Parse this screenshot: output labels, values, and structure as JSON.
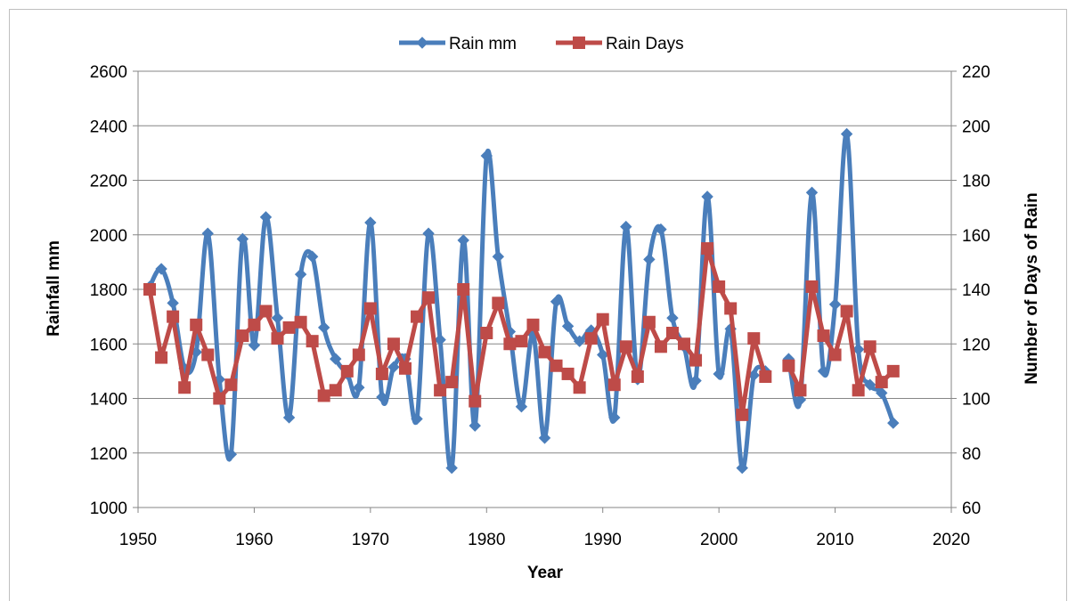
{
  "chart_data": {
    "type": "line",
    "xlabel": "Year",
    "ylabel_left": "Rainfall mm",
    "ylabel_right": "Number of Days of Rain",
    "xlim": [
      1950,
      2020
    ],
    "xticks": [
      1950,
      1960,
      1970,
      1980,
      1990,
      2000,
      2010,
      2020
    ],
    "ylim_left": [
      1000,
      2600
    ],
    "yticks_left": [
      1000,
      1200,
      1400,
      1600,
      1800,
      2000,
      2200,
      2400,
      2600
    ],
    "ylim_right": [
      60,
      220
    ],
    "yticks_right": [
      60,
      80,
      100,
      120,
      140,
      160,
      180,
      200,
      220
    ],
    "legend_position": "top",
    "grid": "horizontal",
    "series": [
      {
        "name": "Rain mm",
        "axis": "left",
        "color": "#4a7ebb",
        "marker": "diamond",
        "smooth": true,
        "points": [
          [
            1951,
            1810
          ],
          [
            1952,
            1875
          ],
          [
            1953,
            1750
          ],
          [
            1954,
            1510
          ],
          [
            1955,
            1570
          ],
          [
            1956,
            2005
          ],
          [
            1957,
            1470
          ],
          [
            1958,
            1195
          ],
          [
            1959,
            1985
          ],
          [
            1960,
            1595
          ],
          [
            1961,
            2065
          ],
          [
            1962,
            1695
          ],
          [
            1963,
            1330
          ],
          [
            1964,
            1855
          ],
          [
            1965,
            1920
          ],
          [
            1966,
            1660
          ],
          [
            1967,
            1545
          ],
          [
            1968,
            1490
          ],
          [
            1969,
            1440
          ],
          [
            1970,
            2045
          ],
          [
            1971,
            1405
          ],
          [
            1972,
            1515
          ],
          [
            1973,
            1545
          ],
          [
            1974,
            1325
          ],
          [
            1975,
            2005
          ],
          [
            1976,
            1615
          ],
          [
            1977,
            1145
          ],
          [
            1978,
            1980
          ],
          [
            1979,
            1300
          ],
          [
            1980,
            2290
          ],
          [
            1981,
            1920
          ],
          [
            1982,
            1645
          ],
          [
            1983,
            1370
          ],
          [
            1984,
            1635
          ],
          [
            1985,
            1255
          ],
          [
            1986,
            1755
          ],
          [
            1987,
            1665
          ],
          [
            1988,
            1610
          ],
          [
            1989,
            1650
          ],
          [
            1990,
            1560
          ],
          [
            1991,
            1330
          ],
          [
            1992,
            2030
          ],
          [
            1993,
            1470
          ],
          [
            1994,
            1910
          ],
          [
            1995,
            2020
          ],
          [
            1996,
            1695
          ],
          [
            1997,
            1590
          ],
          [
            1998,
            1465
          ],
          [
            1999,
            2140
          ],
          [
            2000,
            1490
          ],
          [
            2001,
            1655
          ],
          [
            2002,
            1145
          ],
          [
            2003,
            1485
          ],
          [
            2004,
            1500
          ],
          [
            2006,
            1545
          ],
          [
            2007,
            1395
          ],
          [
            2008,
            2155
          ],
          [
            2009,
            1500
          ],
          [
            2010,
            1745
          ],
          [
            2011,
            2370
          ],
          [
            2012,
            1580
          ],
          [
            2013,
            1450
          ],
          [
            2014,
            1420
          ],
          [
            2015,
            1310
          ]
        ]
      },
      {
        "name": "Rain Days",
        "axis": "right",
        "color": "#be4b48",
        "marker": "square",
        "smooth": false,
        "points": [
          [
            1951,
            140
          ],
          [
            1952,
            115
          ],
          [
            1953,
            130
          ],
          [
            1954,
            104
          ],
          [
            1955,
            127
          ],
          [
            1956,
            116
          ],
          [
            1957,
            100
          ],
          [
            1958,
            105
          ],
          [
            1959,
            123
          ],
          [
            1960,
            127
          ],
          [
            1961,
            132
          ],
          [
            1962,
            122
          ],
          [
            1963,
            126
          ],
          [
            1964,
            128
          ],
          [
            1965,
            121
          ],
          [
            1966,
            101
          ],
          [
            1967,
            103
          ],
          [
            1968,
            110
          ],
          [
            1969,
            116
          ],
          [
            1970,
            133
          ],
          [
            1971,
            109
          ],
          [
            1972,
            120
          ],
          [
            1973,
            111
          ],
          [
            1974,
            130
          ],
          [
            1975,
            137
          ],
          [
            1976,
            103
          ],
          [
            1977,
            106
          ],
          [
            1978,
            140
          ],
          [
            1979,
            99
          ],
          [
            1980,
            124
          ],
          [
            1981,
            135
          ],
          [
            1982,
            120
          ],
          [
            1983,
            121
          ],
          [
            1984,
            127
          ],
          [
            1985,
            117
          ],
          [
            1986,
            112
          ],
          [
            1987,
            109
          ],
          [
            1988,
            104
          ],
          [
            1989,
            122
          ],
          [
            1990,
            129
          ],
          [
            1991,
            105
          ],
          [
            1992,
            119
          ],
          [
            1993,
            108
          ],
          [
            1994,
            128
          ],
          [
            1995,
            119
          ],
          [
            1996,
            124
          ],
          [
            1997,
            120
          ],
          [
            1998,
            114
          ],
          [
            1999,
            155
          ],
          [
            2000,
            141
          ],
          [
            2001,
            133
          ],
          [
            2002,
            94
          ],
          [
            2003,
            122
          ],
          [
            2004,
            108
          ],
          [
            2006,
            112
          ],
          [
            2007,
            103
          ],
          [
            2008,
            141
          ],
          [
            2009,
            123
          ],
          [
            2010,
            116
          ],
          [
            2011,
            132
          ],
          [
            2012,
            103
          ],
          [
            2013,
            119
          ],
          [
            2014,
            106
          ],
          [
            2015,
            110
          ]
        ]
      }
    ]
  }
}
